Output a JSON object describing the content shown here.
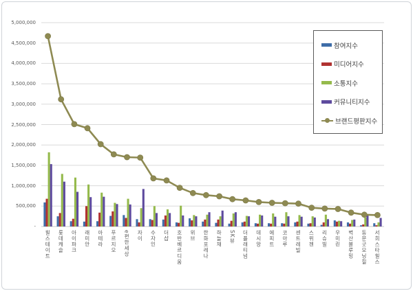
{
  "chart_data": {
    "type": "bar+line",
    "title": "",
    "categories": [
      "힐스테이트",
      "롯데캐슬",
      "아이파크",
      "래미안",
      "아테라",
      "푸르지오",
      "e편한세상",
      "자이",
      "수자인",
      "더샵",
      "호반베르디움",
      "위브",
      "한화포레나",
      "하늘채",
      "SK뷰",
      "더플래티넘",
      "데시앙",
      "에피트",
      "코아루",
      "센트레빌",
      "스위첸",
      "리슈빌",
      "우미린",
      "벽산블루밍",
      "동문굿모닝힐",
      "서희스타힐스"
    ],
    "bar_series": [
      {
        "name": "참여지수",
        "color": "#3E6DA8",
        "values": [
          590000,
          250000,
          130000,
          120000,
          130000,
          260000,
          280000,
          180000,
          180000,
          170000,
          100000,
          200000,
          120000,
          90000,
          70000,
          100000,
          80000,
          80000,
          80000,
          100000,
          70000,
          40000,
          150000,
          100000,
          30000,
          80000
        ]
      },
      {
        "name": "미디어지수",
        "color": "#B03231",
        "values": [
          680000,
          330000,
          190000,
          500000,
          340000,
          370000,
          210000,
          100000,
          160000,
          270000,
          90000,
          150000,
          170000,
          170000,
          140000,
          120000,
          70000,
          70000,
          70000,
          120000,
          80000,
          100000,
          120000,
          70000,
          50000,
          30000
        ]
      },
      {
        "name": "소통지수",
        "color": "#95BA4C",
        "values": [
          1820000,
          1290000,
          1200000,
          1030000,
          830000,
          580000,
          680000,
          450000,
          500000,
          420000,
          510000,
          280000,
          290000,
          250000,
          320000,
          260000,
          290000,
          320000,
          350000,
          280000,
          250000,
          290000,
          140000,
          160000,
          220000,
          100000
        ]
      },
      {
        "name": "커뮤니티지수",
        "color": "#5E4B9E",
        "values": [
          1530000,
          1100000,
          850000,
          720000,
          730000,
          550000,
          540000,
          920000,
          330000,
          330000,
          270000,
          250000,
          350000,
          390000,
          350000,
          250000,
          270000,
          240000,
          250000,
          240000,
          220000,
          180000,
          130000,
          170000,
          290000,
          210000
        ]
      }
    ],
    "line_series": {
      "name": "브랜드평판지수",
      "color": "#8E8A52",
      "marker": "circle",
      "values": [
        4670000,
        3120000,
        2510000,
        2410000,
        2020000,
        1770000,
        1700000,
        1690000,
        1180000,
        1130000,
        950000,
        820000,
        770000,
        740000,
        670000,
        640000,
        600000,
        580000,
        570000,
        560000,
        460000,
        440000,
        430000,
        340000,
        290000,
        280000
      ]
    },
    "y_axis": {
      "min": 0,
      "max": 5000000,
      "tick_step": 500000,
      "tick_labels": [
        "-",
        "500,000",
        "1,000,000",
        "1,500,000",
        "2,000,000",
        "2,500,000",
        "3,000,000",
        "3,500,000",
        "4,000,000",
        "4,500,000",
        "5,000,000"
      ]
    },
    "legend": {
      "position": "upper-right",
      "items": [
        "참여지수",
        "미디어지수",
        "소통지수",
        "커뮤니티지수",
        "브랜드평판지수"
      ]
    },
    "grid": true,
    "colors": {
      "gridline": "#D9D9D9",
      "axis_text": "#595959",
      "legend_border": "#595959",
      "background": "#FFFFFF"
    }
  }
}
